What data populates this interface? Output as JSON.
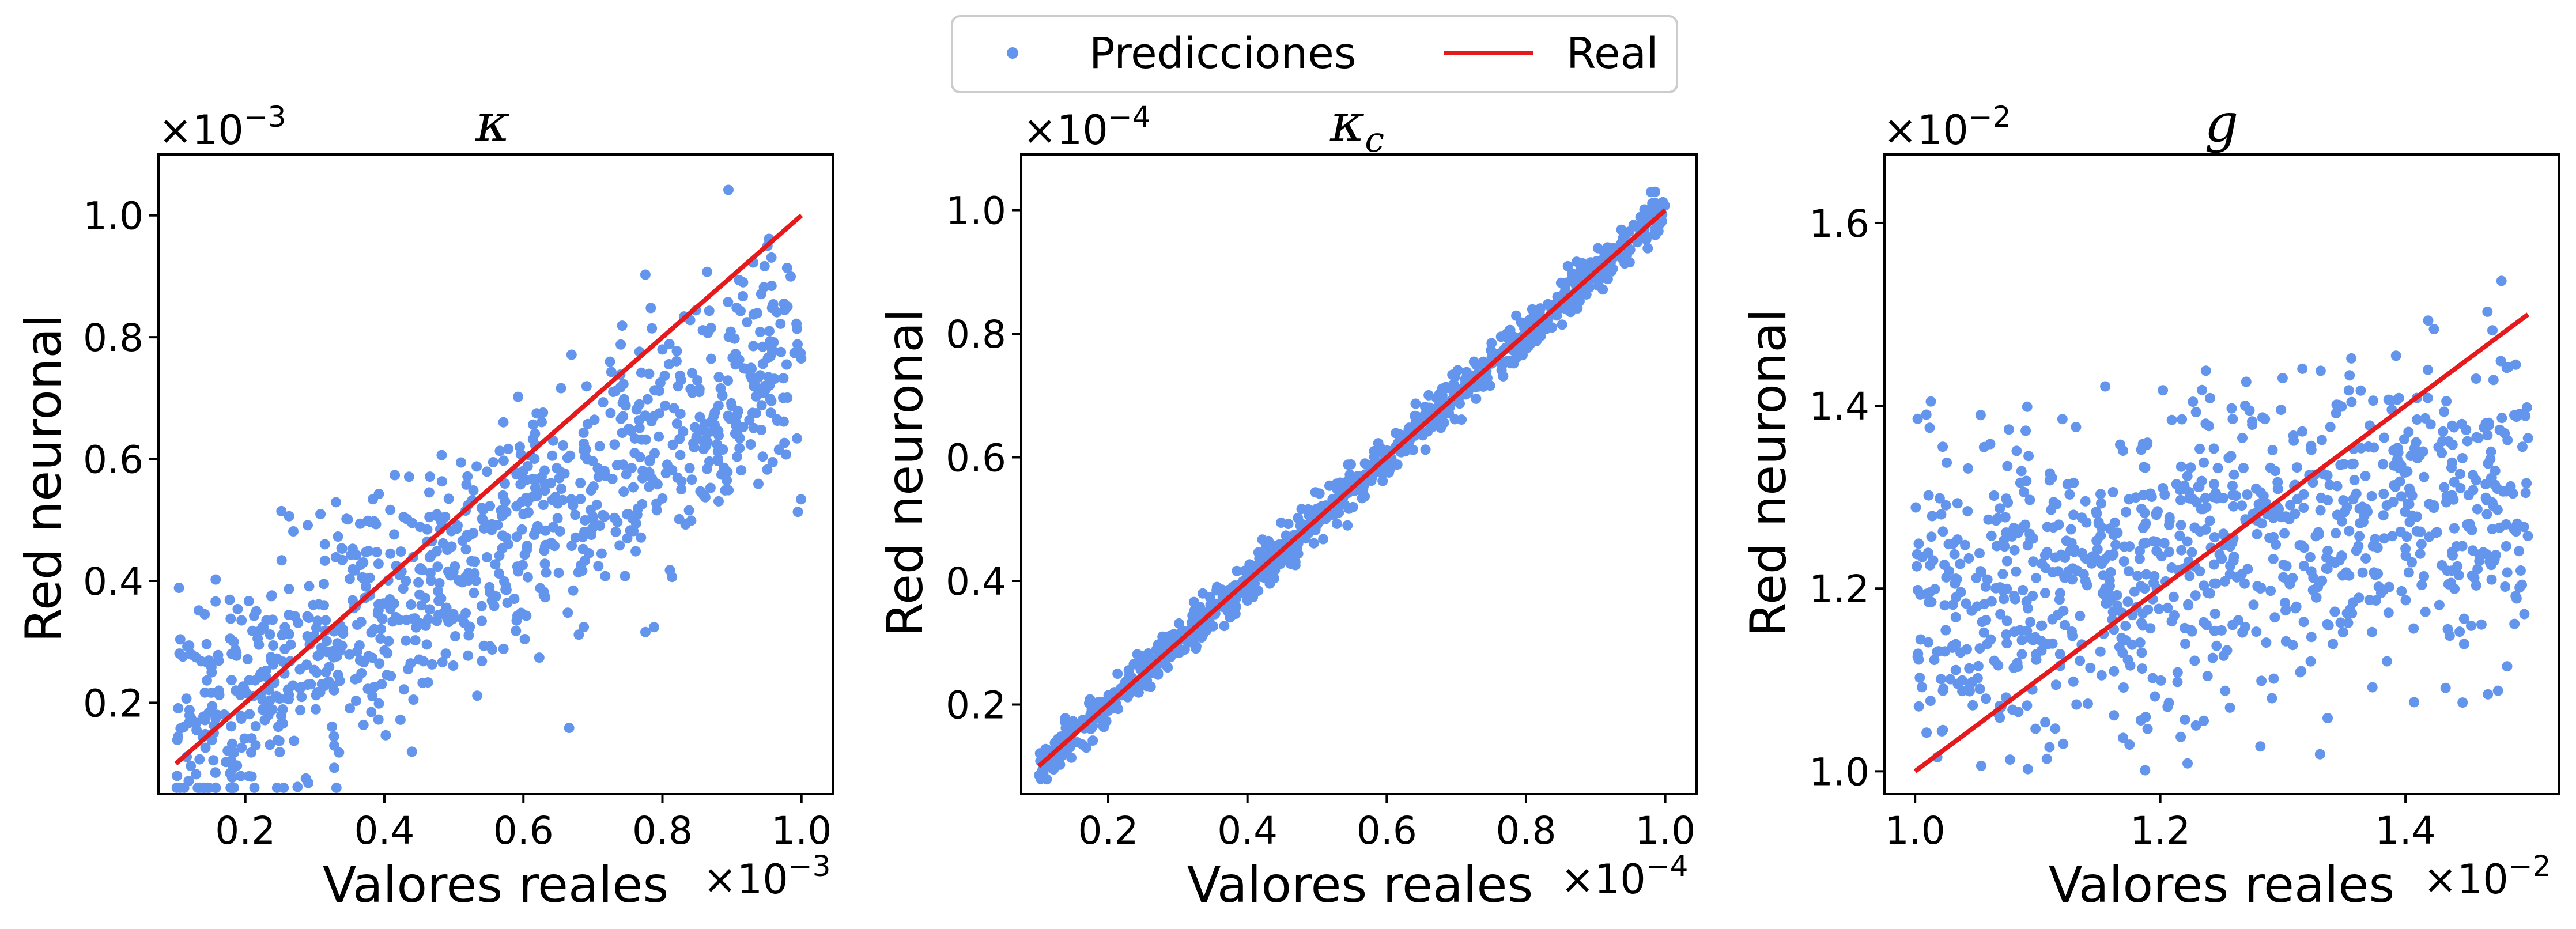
{
  "legend": {
    "entries": [
      {
        "label": "Predicciones",
        "marker": "dot",
        "color": "#6495ED"
      },
      {
        "label": "Real",
        "marker": "line",
        "color": "#E41A1C"
      }
    ],
    "placement": "top-center"
  },
  "chart_data": [
    {
      "type": "scatter",
      "title": "κ",
      "title_sub": "",
      "xlabel": "Valores reales",
      "ylabel": "Red neuronal",
      "x_exponent": "×10",
      "x_exponent_power": "−3",
      "y_exponent": "×10",
      "y_exponent_power": "−3",
      "xlim": [
        0.075,
        1.045
      ],
      "ylim": [
        0.05,
        1.1
      ],
      "xticks": [
        0.2,
        0.4,
        0.6,
        0.8,
        1.0
      ],
      "xtick_labels": [
        "0.2",
        "0.4",
        "0.6",
        "0.8",
        "1.0"
      ],
      "yticks": [
        0.2,
        0.4,
        0.6,
        0.8,
        1.0
      ],
      "ytick_labels": [
        "0.2",
        "0.4",
        "0.6",
        "0.8",
        "1.0"
      ],
      "reference_line": {
        "x": [
          0.1,
          1.0
        ],
        "y": [
          0.1,
          1.0
        ]
      },
      "scatter_model": {
        "count": 950,
        "x_range": [
          0.1,
          1.0
        ],
        "slope": 0.7,
        "intercept": 0.07,
        "noise_sd": 0.1,
        "seed": 11
      },
      "grid": false
    },
    {
      "type": "scatter",
      "title": "κ",
      "title_sub": "c",
      "xlabel": "Valores reales",
      "ylabel": "Red neuronal",
      "x_exponent": "×10",
      "x_exponent_power": "−4",
      "y_exponent": "×10",
      "y_exponent_power": "−4",
      "xlim": [
        0.075,
        1.045
      ],
      "ylim": [
        0.055,
        1.09
      ],
      "xticks": [
        0.2,
        0.4,
        0.6,
        0.8,
        1.0
      ],
      "xtick_labels": [
        "0.2",
        "0.4",
        "0.6",
        "0.8",
        "1.0"
      ],
      "yticks": [
        0.2,
        0.4,
        0.6,
        0.8,
        1.0
      ],
      "ytick_labels": [
        "0.2",
        "0.4",
        "0.6",
        "0.8",
        "1.0"
      ],
      "reference_line": {
        "x": [
          0.1,
          1.0
        ],
        "y": [
          0.1,
          1.0
        ]
      },
      "scatter_model": {
        "count": 950,
        "x_range": [
          0.1,
          1.0
        ],
        "slope": 1.0,
        "intercept": 0.0,
        "noise_sd": 0.017,
        "seed": 29
      },
      "grid": false
    },
    {
      "type": "scatter",
      "title": "g",
      "title_sub": "",
      "xlabel": "Valores reales",
      "ylabel": "Red neuronal",
      "x_exponent": "×10",
      "x_exponent_power": "−2",
      "y_exponent": "×10",
      "y_exponent_power": "−2",
      "xlim": [
        0.975,
        1.525
      ],
      "ylim": [
        0.975,
        1.675
      ],
      "xticks": [
        1.0,
        1.2,
        1.4
      ],
      "xtick_labels": [
        "1.0",
        "1.2",
        "1.4"
      ],
      "yticks": [
        1.0,
        1.2,
        1.4,
        1.6
      ],
      "ytick_labels": [
        "1.0",
        "1.2",
        "1.4",
        "1.6"
      ],
      "reference_line": {
        "x": [
          1.0,
          1.5
        ],
        "y": [
          1.0,
          1.5
        ]
      },
      "scatter_model": {
        "count": 950,
        "x_range": [
          1.0,
          1.5
        ],
        "slope": 0.25,
        "intercept": 0.93,
        "noise_sd": 0.085,
        "seed": 53
      },
      "grid": false
    }
  ]
}
